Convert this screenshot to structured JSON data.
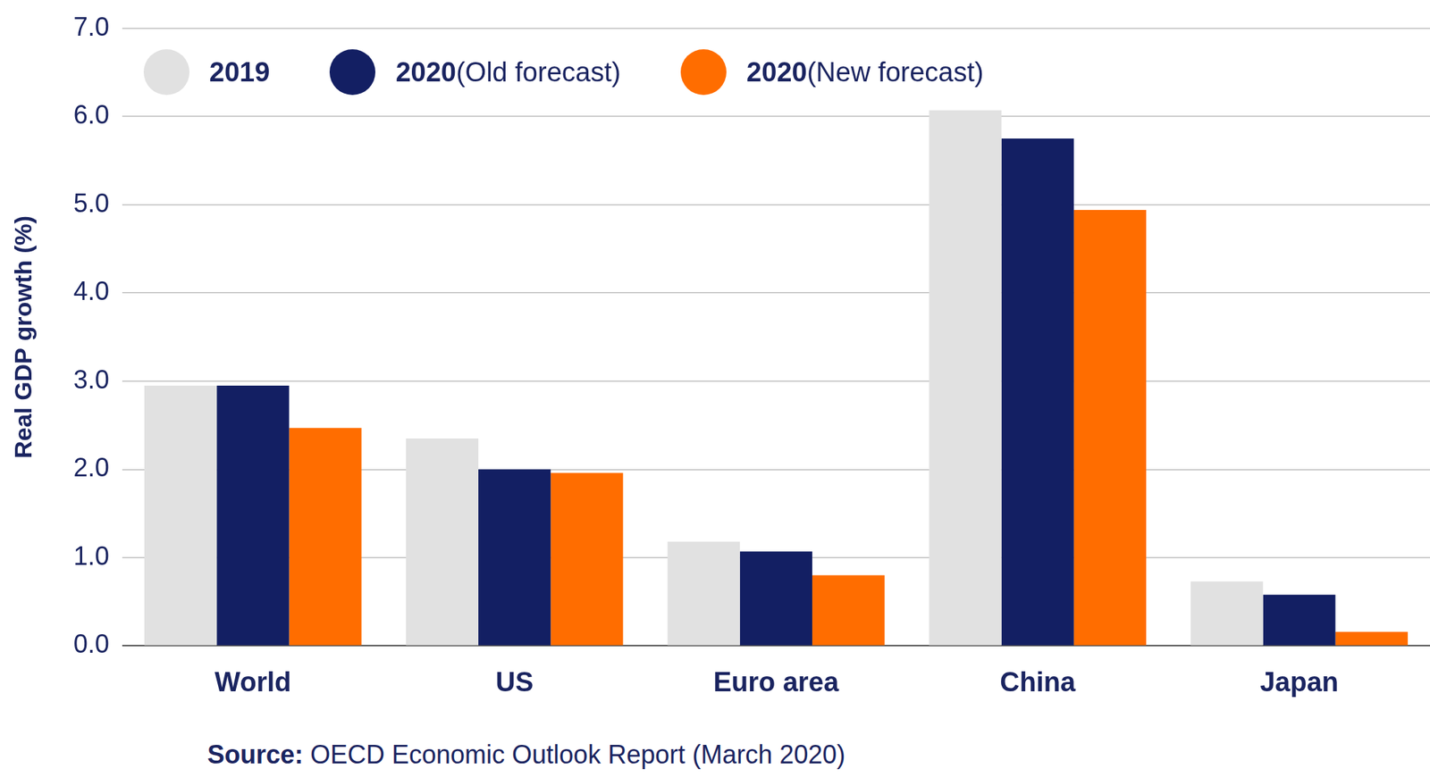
{
  "chart_data": {
    "type": "bar",
    "categories": [
      "World",
      "US",
      "Euro area",
      "China",
      "Japan"
    ],
    "series": [
      {
        "name": "2019",
        "color": "#e1e1e1",
        "values": [
          2.95,
          2.35,
          1.18,
          6.07,
          0.73
        ]
      },
      {
        "name": "2020 (Old forecast)",
        "color": "#131f63",
        "values": [
          2.95,
          2.0,
          1.07,
          5.75,
          0.58
        ]
      },
      {
        "name": "2020 (New forecast)",
        "color": "#ff6d00",
        "values": [
          2.47,
          1.96,
          0.8,
          4.94,
          0.16
        ]
      }
    ],
    "y_label": "Real GDP growth (%)",
    "source": "Source: OECD Economic Outlook Report (March 2020)",
    "ylim": [
      0,
      7
    ],
    "yticks": [
      {
        "value": 0,
        "label": "0.0"
      },
      {
        "value": 1,
        "label": "1.0"
      },
      {
        "value": 2,
        "label": "2.0"
      },
      {
        "value": 3,
        "label": "3.0"
      },
      {
        "value": 4,
        "label": "4.0"
      },
      {
        "value": 5,
        "label": "5.0"
      },
      {
        "value": 6,
        "label": "6.0"
      },
      {
        "value": 7,
        "label": "7.0"
      }
    ],
    "grid": true,
    "legend": "top-left"
  }
}
